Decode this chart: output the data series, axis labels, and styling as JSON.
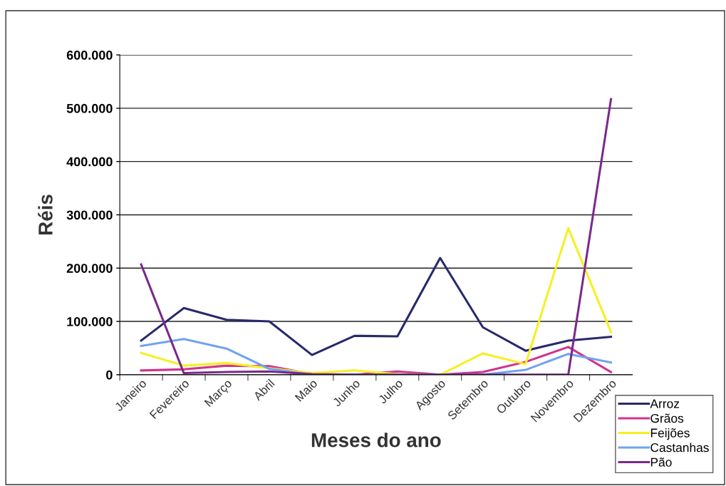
{
  "chart_data": {
    "type": "line",
    "xlabel": "Meses do ano",
    "ylabel": "Réis",
    "categories": [
      "Janeiro",
      "Fevereiro",
      "Março",
      "Abril",
      "Maio",
      "Junho",
      "Julho",
      "Agosto",
      "Setembro",
      "Outubro",
      "Novembro",
      "Dezembro"
    ],
    "series": [
      {
        "name": "Arroz",
        "color": "#27296b",
        "values": [
          64000,
          125000,
          103000,
          100000,
          37000,
          73000,
          72000,
          219000,
          89000,
          45000,
          64000,
          71000
        ]
      },
      {
        "name": "Grãos",
        "color": "#d1338f",
        "values": [
          8000,
          10000,
          17000,
          16000,
          1000,
          0,
          6000,
          0,
          5000,
          24000,
          52000,
          5000
        ]
      },
      {
        "name": "Feijões",
        "color": "#f5f023",
        "values": [
          41000,
          17000,
          22000,
          12000,
          3000,
          8000,
          1000,
          0,
          40000,
          20000,
          275000,
          80000
        ]
      },
      {
        "name": "Castanhas",
        "color": "#6fa3f0",
        "values": [
          54000,
          67000,
          49000,
          11000,
          0,
          0,
          0,
          0,
          0,
          9000,
          39000,
          23000
        ]
      },
      {
        "name": "Pão",
        "color": "#7a2a8c",
        "values": [
          207000,
          3000,
          5000,
          6000,
          1000,
          0,
          0,
          0,
          0,
          0,
          0,
          517000
        ]
      }
    ],
    "ylim": [
      0,
      600000
    ],
    "yticks": [
      0,
      {
        "value": 100000,
        "label": "100.000"
      },
      {
        "value": 200000,
        "label": "200.000"
      },
      {
        "value": 300000,
        "label": "300.000"
      },
      {
        "value": 400000,
        "label": "400.000"
      },
      {
        "value": 500000,
        "label": "500.000"
      },
      {
        "value": 600000,
        "label": "600.000"
      }
    ],
    "grid": "y",
    "legend": "bottom right",
    "marker": "none",
    "line_style": "solid"
  }
}
